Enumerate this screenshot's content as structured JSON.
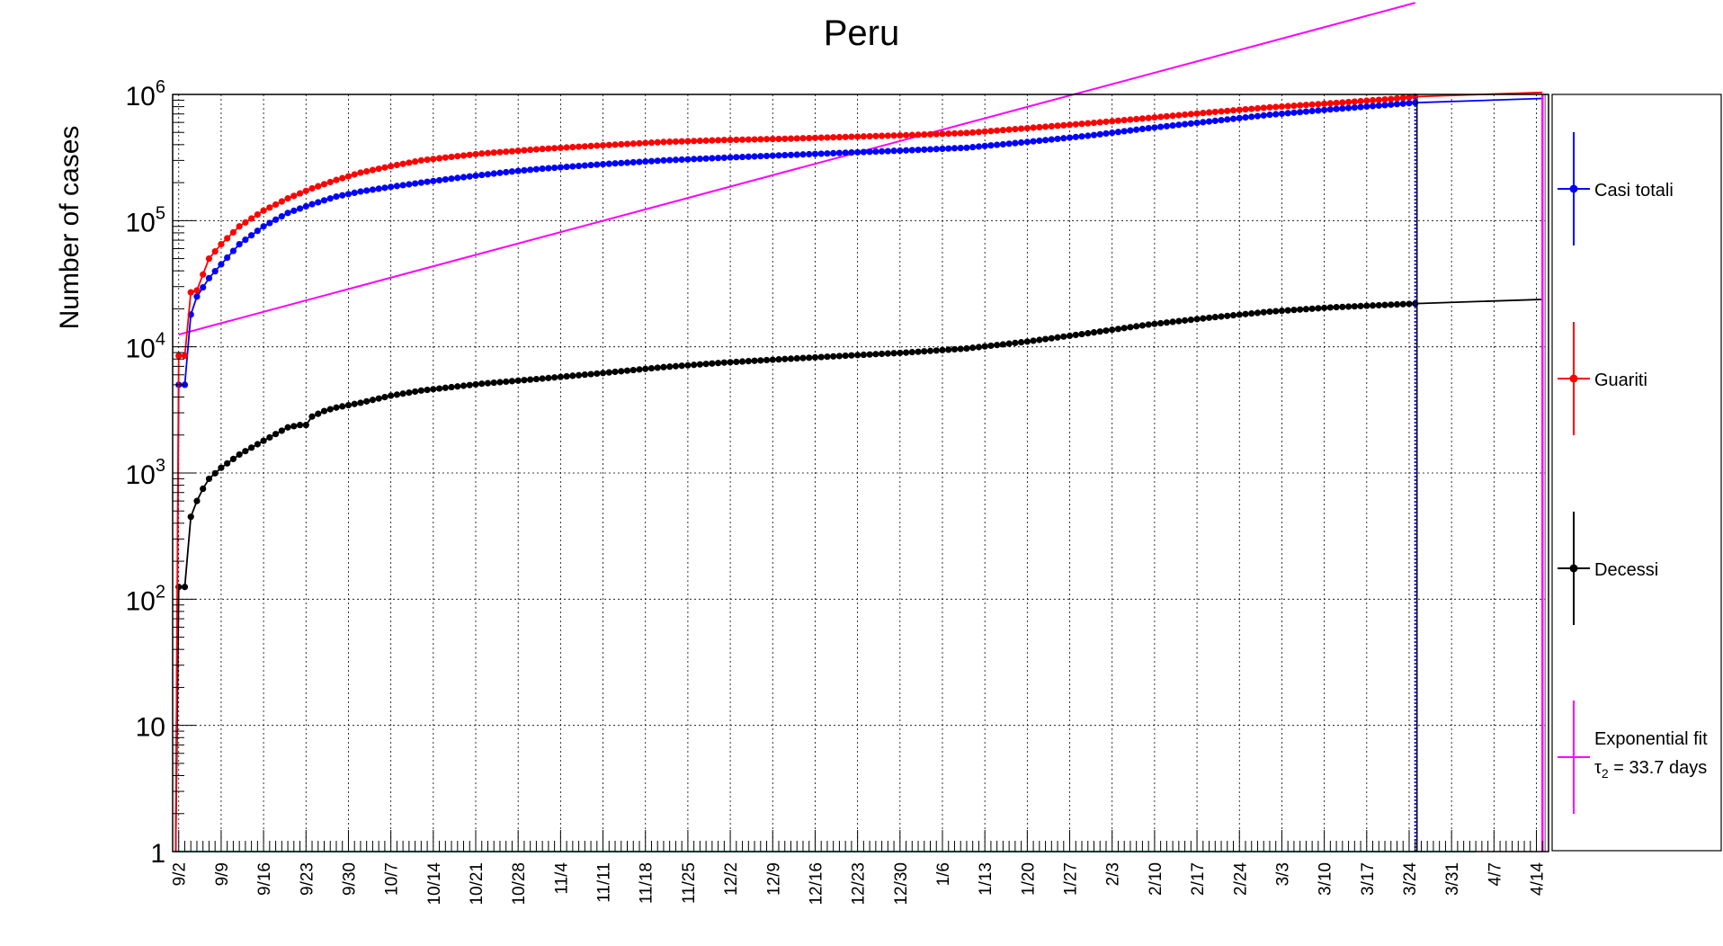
{
  "chart_data": {
    "type": "scatter",
    "title": "Peru",
    "ylabel": "Number of cases",
    "xlabel": "",
    "y_scale": "log",
    "ylim": [
      1,
      1000000
    ],
    "grid": true,
    "legend_position": "right",
    "x_tick_labels": [
      "9/2",
      "9/9",
      "9/16",
      "9/23",
      "9/30",
      "10/7",
      "10/14",
      "10/21",
      "10/28",
      "11/4",
      "11/11",
      "11/18",
      "11/25",
      "12/2",
      "12/9",
      "12/16",
      "12/23",
      "12/30",
      "1/6",
      "1/13",
      "1/20",
      "1/27",
      "2/3",
      "2/10",
      "2/17",
      "2/24",
      "3/3",
      "3/10",
      "3/17",
      "3/24",
      "3/31",
      "4/7",
      "4/14"
    ],
    "y_tick_labels": [
      "1",
      "10",
      "10^2",
      "10^3",
      "10^4",
      "10^5",
      "10^6"
    ],
    "x_day_range": [
      -1,
      226
    ],
    "series": [
      {
        "name": "Casi totali",
        "color": "#0000ff",
        "anchors": [
          [
            0,
            5000
          ],
          [
            1,
            5000
          ],
          [
            2,
            18000
          ],
          [
            3,
            25000
          ],
          [
            5,
            35000
          ],
          [
            7,
            45000
          ],
          [
            10,
            65000
          ],
          [
            14,
            90000
          ],
          [
            18,
            115000
          ],
          [
            22,
            135000
          ],
          [
            26,
            155000
          ],
          [
            30,
            170000
          ],
          [
            35,
            185000
          ],
          [
            40,
            200000
          ],
          [
            45,
            215000
          ],
          [
            50,
            230000
          ],
          [
            55,
            245000
          ],
          [
            60,
            258000
          ],
          [
            70,
            280000
          ],
          [
            80,
            300000
          ],
          [
            90,
            315000
          ],
          [
            100,
            330000
          ],
          [
            110,
            345000
          ],
          [
            120,
            360000
          ],
          [
            130,
            378000
          ],
          [
            140,
            420000
          ],
          [
            150,
            470000
          ],
          [
            160,
            540000
          ],
          [
            170,
            610000
          ],
          [
            180,
            690000
          ],
          [
            190,
            760000
          ],
          [
            200,
            830000
          ],
          [
            204,
            860000
          ]
        ]
      },
      {
        "name": "Guariti",
        "color": "#ff0000",
        "anchors": [
          [
            0,
            8500
          ],
          [
            1,
            8500
          ],
          [
            2,
            27000
          ],
          [
            3,
            28000
          ],
          [
            5,
            50000
          ],
          [
            7,
            65000
          ],
          [
            10,
            90000
          ],
          [
            14,
            120000
          ],
          [
            18,
            150000
          ],
          [
            22,
            180000
          ],
          [
            26,
            210000
          ],
          [
            30,
            240000
          ],
          [
            35,
            270000
          ],
          [
            40,
            300000
          ],
          [
            45,
            320000
          ],
          [
            50,
            340000
          ],
          [
            60,
            370000
          ],
          [
            70,
            395000
          ],
          [
            80,
            420000
          ],
          [
            90,
            435000
          ],
          [
            100,
            445000
          ],
          [
            110,
            460000
          ],
          [
            120,
            475000
          ],
          [
            130,
            495000
          ],
          [
            140,
            540000
          ],
          [
            150,
            590000
          ],
          [
            160,
            650000
          ],
          [
            170,
            720000
          ],
          [
            180,
            790000
          ],
          [
            190,
            850000
          ],
          [
            200,
            920000
          ],
          [
            204,
            960000
          ]
        ]
      },
      {
        "name": "Decessi",
        "color": "#000000",
        "anchors": [
          [
            -1,
            1
          ],
          [
            0,
            125
          ],
          [
            1,
            125
          ],
          [
            2,
            450
          ],
          [
            3,
            600
          ],
          [
            4,
            750
          ],
          [
            5,
            900
          ],
          [
            7,
            1100
          ],
          [
            10,
            1400
          ],
          [
            14,
            1800
          ],
          [
            18,
            2300
          ],
          [
            20,
            2400
          ],
          [
            21,
            2400
          ],
          [
            22,
            2800
          ],
          [
            24,
            3100
          ],
          [
            26,
            3300
          ],
          [
            30,
            3600
          ],
          [
            35,
            4100
          ],
          [
            40,
            4500
          ],
          [
            50,
            5100
          ],
          [
            60,
            5600
          ],
          [
            70,
            6200
          ],
          [
            80,
            6900
          ],
          [
            90,
            7500
          ],
          [
            100,
            8000
          ],
          [
            110,
            8500
          ],
          [
            120,
            9000
          ],
          [
            130,
            9700
          ],
          [
            140,
            11000
          ],
          [
            150,
            12800
          ],
          [
            160,
            15000
          ],
          [
            170,
            17000
          ],
          [
            180,
            19000
          ],
          [
            190,
            20500
          ],
          [
            204,
            22000
          ]
        ]
      },
      {
        "name": "Exponential fit",
        "label_line2": "τ2 = 33.7 days",
        "color": "#ff00ff",
        "fit_from": [
          0,
          12500
        ],
        "tau_days": 33.7
      }
    ],
    "extra_lines": [
      {
        "name": "baseline",
        "color": "#00e5d0",
        "y": 1
      }
    ]
  }
}
